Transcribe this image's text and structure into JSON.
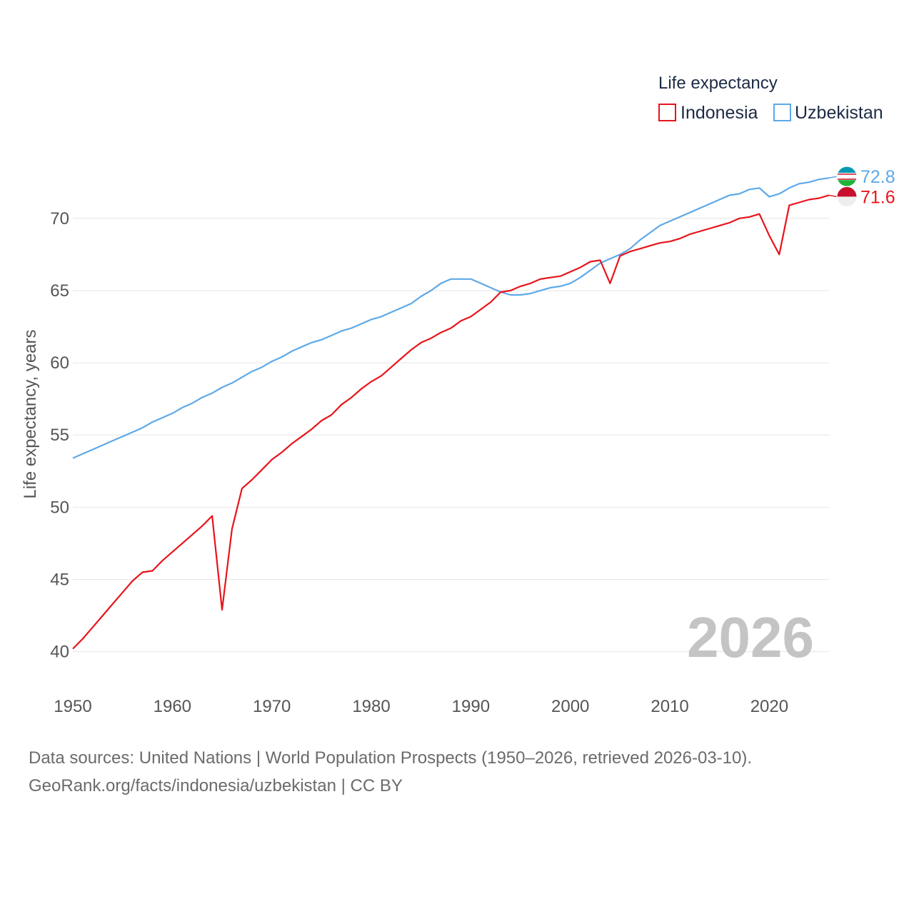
{
  "chart_data": {
    "type": "line",
    "legend": {
      "title": "Life expectancy",
      "placement": "top-right"
    },
    "ylabel": "Life expectancy, years",
    "xlabel": "",
    "ylim": [
      38.5,
      73.5
    ],
    "xlim": [
      1950,
      2026
    ],
    "yticks": [
      "40",
      "45",
      "50",
      "55",
      "60",
      "65",
      "70"
    ],
    "ytick_values": [
      40,
      45,
      50,
      55,
      60,
      65,
      70
    ],
    "xticks": [
      "1950",
      "1960",
      "1970",
      "1980",
      "1990",
      "2000",
      "2010",
      "2020"
    ],
    "xtick_values": [
      1950,
      1960,
      1970,
      1980,
      1990,
      2000,
      2010,
      2020
    ],
    "year_watermark": "2026",
    "series": [
      {
        "name": "Indonesia",
        "color": "#e8141b",
        "end_label": "71.6",
        "flag_colors": [
          "#c8102e",
          "#eeeeee"
        ],
        "points": [
          [
            1950,
            40.2
          ],
          [
            1951,
            40.9
          ],
          [
            1952,
            41.7
          ],
          [
            1953,
            42.5
          ],
          [
            1954,
            43.3
          ],
          [
            1955,
            44.1
          ],
          [
            1956,
            44.9
          ],
          [
            1957,
            45.5
          ],
          [
            1958,
            45.6
          ],
          [
            1959,
            46.3
          ],
          [
            1960,
            46.9
          ],
          [
            1961,
            47.5
          ],
          [
            1962,
            48.1
          ],
          [
            1963,
            48.7
          ],
          [
            1964,
            49.4
          ],
          [
            1965,
            42.9
          ],
          [
            1966,
            48.5
          ],
          [
            1967,
            51.3
          ],
          [
            1968,
            51.9
          ],
          [
            1969,
            52.6
          ],
          [
            1970,
            53.3
          ],
          [
            1971,
            53.8
          ],
          [
            1972,
            54.4
          ],
          [
            1973,
            54.9
          ],
          [
            1974,
            55.4
          ],
          [
            1975,
            56.0
          ],
          [
            1976,
            56.4
          ],
          [
            1977,
            57.1
          ],
          [
            1978,
            57.6
          ],
          [
            1979,
            58.2
          ],
          [
            1980,
            58.7
          ],
          [
            1981,
            59.1
          ],
          [
            1982,
            59.7
          ],
          [
            1983,
            60.3
          ],
          [
            1984,
            60.9
          ],
          [
            1985,
            61.4
          ],
          [
            1986,
            61.7
          ],
          [
            1987,
            62.1
          ],
          [
            1988,
            62.4
          ],
          [
            1989,
            62.9
          ],
          [
            1990,
            63.2
          ],
          [
            1991,
            63.7
          ],
          [
            1992,
            64.2
          ],
          [
            1993,
            64.9
          ],
          [
            1994,
            65.0
          ],
          [
            1995,
            65.3
          ],
          [
            1996,
            65.5
          ],
          [
            1997,
            65.8
          ],
          [
            1998,
            65.9
          ],
          [
            1999,
            66.0
          ],
          [
            2000,
            66.3
          ],
          [
            2001,
            66.6
          ],
          [
            2002,
            67.0
          ],
          [
            2003,
            67.1
          ],
          [
            2004,
            65.5
          ],
          [
            2005,
            67.4
          ],
          [
            2006,
            67.7
          ],
          [
            2007,
            67.9
          ],
          [
            2008,
            68.1
          ],
          [
            2009,
            68.3
          ],
          [
            2010,
            68.4
          ],
          [
            2011,
            68.6
          ],
          [
            2012,
            68.9
          ],
          [
            2013,
            69.1
          ],
          [
            2014,
            69.3
          ],
          [
            2015,
            69.5
          ],
          [
            2016,
            69.7
          ],
          [
            2017,
            70.0
          ],
          [
            2018,
            70.1
          ],
          [
            2019,
            70.3
          ],
          [
            2020,
            68.8
          ],
          [
            2021,
            67.5
          ],
          [
            2022,
            70.9
          ],
          [
            2023,
            71.1
          ],
          [
            2024,
            71.3
          ],
          [
            2025,
            71.4
          ],
          [
            2026,
            71.6
          ]
        ]
      },
      {
        "name": "Uzbekistan",
        "color": "#5ea9e8",
        "end_label": "72.8",
        "flag_colors": [
          "#1eb53a",
          "#ffffff",
          "#0099b5"
        ],
        "points": [
          [
            1950,
            53.4
          ],
          [
            1951,
            53.7
          ],
          [
            1952,
            54.0
          ],
          [
            1953,
            54.3
          ],
          [
            1954,
            54.6
          ],
          [
            1955,
            54.9
          ],
          [
            1956,
            55.2
          ],
          [
            1957,
            55.5
          ],
          [
            1958,
            55.9
          ],
          [
            1959,
            56.2
          ],
          [
            1960,
            56.5
          ],
          [
            1961,
            56.9
          ],
          [
            1962,
            57.2
          ],
          [
            1963,
            57.6
          ],
          [
            1964,
            57.9
          ],
          [
            1965,
            58.3
          ],
          [
            1966,
            58.6
          ],
          [
            1967,
            59.0
          ],
          [
            1968,
            59.4
          ],
          [
            1969,
            59.7
          ],
          [
            1970,
            60.1
          ],
          [
            1971,
            60.4
          ],
          [
            1972,
            60.8
          ],
          [
            1973,
            61.1
          ],
          [
            1974,
            61.4
          ],
          [
            1975,
            61.6
          ],
          [
            1976,
            61.9
          ],
          [
            1977,
            62.2
          ],
          [
            1978,
            62.4
          ],
          [
            1979,
            62.7
          ],
          [
            1980,
            63.0
          ],
          [
            1981,
            63.2
          ],
          [
            1982,
            63.5
          ],
          [
            1983,
            63.8
          ],
          [
            1984,
            64.1
          ],
          [
            1985,
            64.6
          ],
          [
            1986,
            65.0
          ],
          [
            1987,
            65.5
          ],
          [
            1988,
            65.8
          ],
          [
            1989,
            65.8
          ],
          [
            1990,
            65.8
          ],
          [
            1991,
            65.5
          ],
          [
            1992,
            65.2
          ],
          [
            1993,
            64.9
          ],
          [
            1994,
            64.7
          ],
          [
            1995,
            64.7
          ],
          [
            1996,
            64.8
          ],
          [
            1997,
            65.0
          ],
          [
            1998,
            65.2
          ],
          [
            1999,
            65.3
          ],
          [
            2000,
            65.5
          ],
          [
            2001,
            65.9
          ],
          [
            2002,
            66.4
          ],
          [
            2003,
            66.9
          ],
          [
            2004,
            67.2
          ],
          [
            2005,
            67.5
          ],
          [
            2006,
            67.9
          ],
          [
            2007,
            68.5
          ],
          [
            2008,
            69.0
          ],
          [
            2009,
            69.5
          ],
          [
            2010,
            69.8
          ],
          [
            2011,
            70.1
          ],
          [
            2012,
            70.4
          ],
          [
            2013,
            70.7
          ],
          [
            2014,
            71.0
          ],
          [
            2015,
            71.3
          ],
          [
            2016,
            71.6
          ],
          [
            2017,
            71.7
          ],
          [
            2018,
            72.0
          ],
          [
            2019,
            72.1
          ],
          [
            2020,
            71.5
          ],
          [
            2021,
            71.7
          ],
          [
            2022,
            72.1
          ],
          [
            2023,
            72.4
          ],
          [
            2024,
            72.5
          ],
          [
            2025,
            72.7
          ],
          [
            2026,
            72.8
          ]
        ]
      }
    ]
  },
  "footer": {
    "line1": "Data sources: United Nations | World Population Prospects (1950–2026, retrieved 2026-03-10).",
    "line2": "GeoRank.org/facts/indonesia/uzbekistan | CC BY"
  }
}
